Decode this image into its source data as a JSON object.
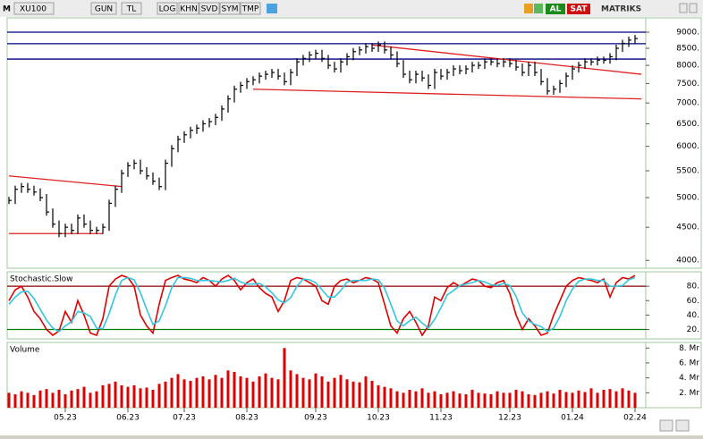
{
  "toolbar": {
    "symbol_prefix": "M",
    "symbol": "XU100",
    "buttons": [
      "GUN",
      "TL",
      "LOG",
      "KHN",
      "SVD",
      "SYM",
      "TMP"
    ],
    "buy": "AL",
    "sell": "SAT",
    "brand": "MATRIKS"
  },
  "chart_data": [
    {
      "type": "tick",
      "log": true,
      "color": "#000000",
      "ylim": [
        3890,
        9470
      ],
      "yticks": [
        {
          "value": 4000,
          "label": "4000."
        },
        {
          "value": 4500,
          "label": "4500."
        },
        {
          "value": 5000,
          "label": "5000."
        },
        {
          "value": 5500,
          "label": "5500."
        },
        {
          "value": 6000,
          "label": "6000."
        },
        {
          "value": 6500,
          "label": "6500."
        },
        {
          "value": 7000,
          "label": "7000."
        },
        {
          "value": 7500,
          "label": "7500."
        },
        {
          "value": 8000,
          "label": "8000."
        },
        {
          "value": 8500,
          "label": "8500."
        },
        {
          "value": 9000,
          "label": "9000."
        }
      ],
      "values": [
        4950,
        5150,
        5200,
        5150,
        5100,
        5000,
        4750,
        4550,
        4400,
        4500,
        4450,
        4650,
        4550,
        4450,
        4450,
        4500,
        4900,
        5150,
        5450,
        5600,
        5650,
        5500,
        5400,
        5300,
        5200,
        5650,
        5950,
        6150,
        6250,
        6350,
        6400,
        6500,
        6550,
        6650,
        6850,
        7100,
        7350,
        7450,
        7550,
        7600,
        7700,
        7750,
        7800,
        7700,
        7550,
        7800,
        8100,
        8200,
        8300,
        8350,
        8200,
        8000,
        7900,
        8100,
        8250,
        8400,
        8450,
        8550,
        8500,
        8600,
        8450,
        8300,
        8050,
        7750,
        7600,
        7750,
        7650,
        7450,
        7800,
        7700,
        7800,
        7900,
        7850,
        7900,
        8000,
        8000,
        8100,
        8100,
        8050,
        8100,
        8050,
        7950,
        7800,
        8000,
        7800,
        7550,
        7300,
        7350,
        7500,
        7700,
        7900,
        8000,
        8100,
        8100,
        8150,
        8150,
        8250,
        8500,
        8650,
        8750,
        8800
      ],
      "hlines": [
        {
          "value": 9000,
          "color": "#000080"
        },
        {
          "value": 8640,
          "color": "#000080"
        },
        {
          "value": 8180,
          "color": "#000080"
        }
      ],
      "trendlines": [
        {
          "from": [
            0,
            4400
          ],
          "to": [
            15,
            4400
          ],
          "color": "#e02020"
        },
        {
          "from": [
            0,
            5400
          ],
          "to": [
            18,
            5200
          ],
          "color": "#e02020"
        },
        {
          "from": [
            39,
            7350
          ],
          "to": [
            101,
            7100
          ],
          "color": "#e02020"
        },
        {
          "from": [
            58,
            8600
          ],
          "to": [
            101,
            7750
          ],
          "color": "#e02020"
        }
      ]
    },
    {
      "type": "line",
      "title": "Stochastic.Slow",
      "ylim": [
        7,
        100
      ],
      "yticks": [
        {
          "value": 20,
          "label": "20."
        },
        {
          "value": 40,
          "label": "40."
        },
        {
          "value": 60,
          "label": "60."
        },
        {
          "value": 80,
          "label": "80."
        }
      ],
      "hlines": [
        {
          "value": 80,
          "color": "#8b0000"
        },
        {
          "value": 20,
          "color": "#008000"
        }
      ],
      "series": [
        {
          "color": "#e00000",
          "values": [
            60,
            75,
            80,
            65,
            45,
            35,
            20,
            12,
            18,
            45,
            30,
            60,
            40,
            15,
            12,
            35,
            80,
            90,
            95,
            92,
            80,
            40,
            25,
            15,
            55,
            88,
            92,
            95,
            90,
            88,
            85,
            92,
            88,
            80,
            90,
            95,
            88,
            75,
            85,
            90,
            78,
            70,
            65,
            45,
            60,
            88,
            92,
            90,
            85,
            80,
            60,
            55,
            80,
            88,
            90,
            85,
            88,
            92,
            90,
            85,
            55,
            25,
            15,
            35,
            45,
            30,
            12,
            25,
            65,
            60,
            78,
            85,
            80,
            85,
            90,
            88,
            80,
            78,
            85,
            88,
            70,
            40,
            20,
            35,
            25,
            12,
            15,
            40,
            60,
            80,
            88,
            92,
            90,
            88,
            85,
            90,
            65,
            85,
            92,
            90,
            95
          ]
        },
        {
          "color": "#33c6e0",
          "values": [
            55,
            65,
            72,
            73,
            63,
            48,
            33,
            22,
            17,
            25,
            31,
            45,
            43,
            38,
            22,
            21,
            42,
            68,
            88,
            92,
            89,
            71,
            48,
            27,
            32,
            53,
            78,
            92,
            92,
            91,
            88,
            88,
            88,
            87,
            86,
            88,
            91,
            86,
            83,
            83,
            84,
            79,
            71,
            61,
            57,
            64,
            80,
            90,
            89,
            85,
            75,
            65,
            65,
            74,
            86,
            88,
            88,
            88,
            90,
            89,
            77,
            55,
            32,
            25,
            32,
            37,
            29,
            22,
            34,
            50,
            68,
            74,
            81,
            83,
            85,
            88,
            86,
            82,
            81,
            84,
            81,
            66,
            43,
            32,
            27,
            24,
            17,
            22,
            38,
            60,
            76,
            87,
            90,
            90,
            88,
            88,
            80,
            80,
            81,
            89,
            92
          ]
        }
      ]
    },
    {
      "type": "bar",
      "title": "Volume",
      "color": "#e00000",
      "ylim": [
        0,
        8.75
      ],
      "yticks": [
        {
          "value": 2,
          "label": "2. Mr"
        },
        {
          "value": 4,
          "label": "4. Mr"
        },
        {
          "value": 6,
          "label": "6. Mr"
        },
        {
          "value": 8,
          "label": "8. Mr"
        }
      ],
      "categories": [
        null,
        null,
        null,
        null,
        null,
        null,
        null,
        null,
        null,
        "05.23",
        null,
        null,
        null,
        null,
        null,
        null,
        null,
        null,
        null,
        "06.23",
        null,
        null,
        null,
        null,
        null,
        null,
        null,
        null,
        "07.23",
        null,
        null,
        null,
        null,
        null,
        null,
        null,
        null,
        null,
        "08.23",
        null,
        null,
        null,
        null,
        null,
        null,
        null,
        null,
        null,
        null,
        "09.23",
        null,
        null,
        null,
        null,
        null,
        null,
        null,
        null,
        null,
        "10.23",
        null,
        null,
        null,
        null,
        null,
        null,
        null,
        null,
        null,
        "11.23",
        null,
        null,
        null,
        null,
        null,
        null,
        null,
        null,
        null,
        null,
        "12.23",
        null,
        null,
        null,
        null,
        null,
        null,
        null,
        null,
        null,
        "01.24",
        null,
        null,
        null,
        null,
        null,
        null,
        null,
        null,
        null,
        "02.24"
      ],
      "values": [
        2.0,
        1.8,
        2.2,
        2.0,
        1.7,
        2.3,
        2.5,
        2.0,
        2.4,
        1.8,
        2.3,
        2.5,
        2.8,
        2.0,
        2.2,
        3.0,
        3.2,
        3.5,
        3.0,
        2.8,
        3.0,
        2.6,
        2.7,
        2.4,
        3.2,
        3.5,
        4.0,
        4.5,
        3.8,
        3.6,
        4.0,
        4.2,
        3.8,
        4.4,
        4.0,
        5.0,
        4.8,
        4.2,
        4.0,
        3.5,
        4.2,
        4.6,
        4.0,
        3.8,
        8.0,
        5.0,
        4.5,
        4.0,
        3.8,
        4.6,
        4.2,
        3.5,
        4.0,
        4.4,
        3.8,
        3.5,
        3.4,
        4.2,
        3.6,
        3.0,
        2.8,
        2.6,
        2.2,
        2.0,
        2.4,
        2.2,
        2.6,
        2.0,
        2.2,
        1.8,
        2.0,
        2.2,
        1.9,
        1.8,
        2.4,
        2.0,
        1.9,
        1.8,
        2.2,
        2.0,
        2.0,
        2.4,
        2.2,
        1.8,
        1.7,
        2.0,
        2.2,
        1.9,
        2.4,
        2.1,
        2.0,
        2.3,
        2.1,
        2.6,
        2.0,
        2.4,
        2.5,
        2.2,
        2.6,
        2.3,
        2.0
      ]
    }
  ]
}
